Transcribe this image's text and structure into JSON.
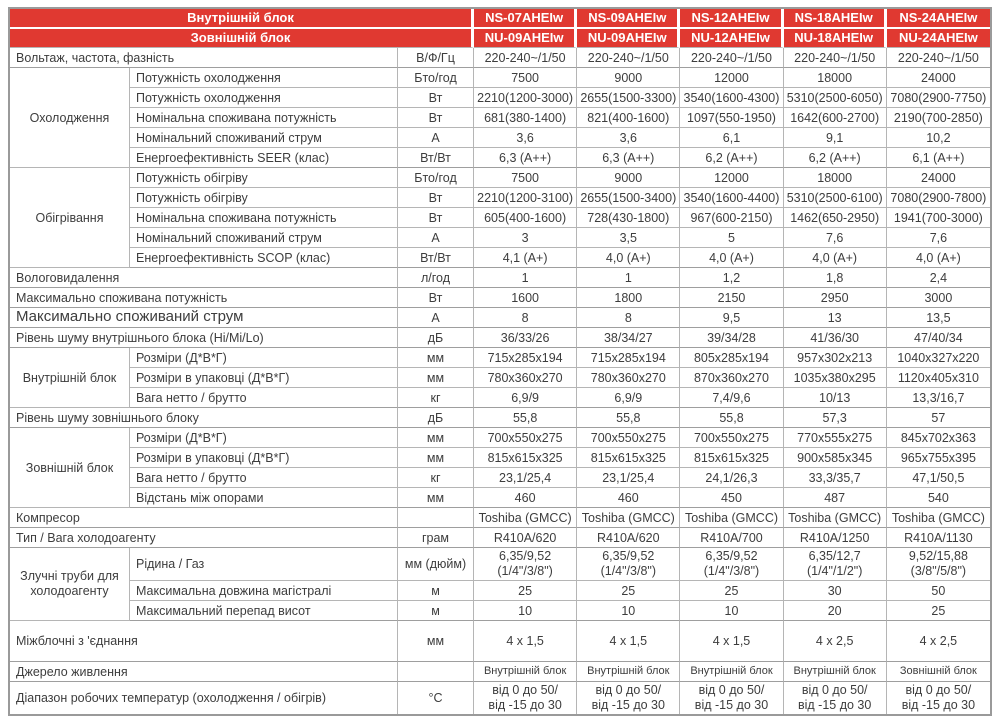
{
  "header": {
    "indoor_label": "Внутрішній блок",
    "outdoor_label": "Зовнішній блок",
    "indoor_models": [
      "NS-07AHEIw",
      "NS-09AHEIw",
      "NS-12AHEIw",
      "NS-18AHEIw",
      "NS-24AHEIw"
    ],
    "outdoor_models": [
      "NU-09AHEIw",
      "NU-09AHEIw",
      "NU-12AHEIw",
      "NU-18AHEIw",
      "NU-24AHEIw"
    ],
    "accent_color": "#e03931"
  },
  "sections": [
    {
      "group": null,
      "rows": [
        {
          "label": "Вольтаж, частота, фазність",
          "unit": "В/Ф/Гц",
          "values": [
            "220-240~/1/50",
            "220-240~/1/50",
            "220-240~/1/50",
            "220-240~/1/50",
            "220-240~/1/50"
          ]
        }
      ]
    },
    {
      "group": "Охолодження",
      "rows": [
        {
          "label": "Потужність охолодження",
          "unit": "Бто/год",
          "values": [
            "7500",
            "9000",
            "12000",
            "18000",
            "24000"
          ]
        },
        {
          "label": "Потужність охолодження",
          "unit": "Вт",
          "values": [
            "2210(1200-3000)",
            "2655(1500-3300)",
            "3540(1600-4300)",
            "5310(2500-6050)",
            "7080(2900-7750)"
          ]
        },
        {
          "label": "Номінальна споживана потужність",
          "unit": "Вт",
          "values": [
            "681(380-1400)",
            "821(400-1600)",
            "1097(550-1950)",
            "1642(600-2700)",
            "2190(700-2850)"
          ]
        },
        {
          "label": "Номінальний споживаний струм",
          "unit": "А",
          "values": [
            "3,6",
            "3,6",
            "6,1",
            "9,1",
            "10,2"
          ]
        },
        {
          "label": "Енергоефективність  SEER (клас)",
          "unit": "Вт/Вт",
          "values": [
            "6,3 (A++)",
            "6,3 (A++)",
            "6,2 (A++)",
            "6,2 (A++)",
            "6,1 (A++)"
          ]
        }
      ]
    },
    {
      "group": "Обігрівання",
      "rows": [
        {
          "label": "Потужність обігріву",
          "unit": "Бто/год",
          "values": [
            "7500",
            "9000",
            "12000",
            "18000",
            "24000"
          ]
        },
        {
          "label": "Потужність обігріву",
          "unit": "Вт",
          "values": [
            "2210(1200-3100)",
            "2655(1500-3400)",
            "3540(1600-4400)",
            "5310(2500-6100)",
            "7080(2900-7800)"
          ]
        },
        {
          "label": "Номінальна споживана потужність",
          "unit": "Вт",
          "values": [
            "605(400-1600)",
            "728(430-1800)",
            "967(600-2150)",
            "1462(650-2950)",
            "1941(700-3000)"
          ]
        },
        {
          "label": "Номінальний споживаний струм",
          "unit": "А",
          "values": [
            "3",
            "3,5",
            "5",
            "7,6",
            "7,6"
          ]
        },
        {
          "label": "Енергоефективність  SCOP (клас)",
          "unit": "Вт/Вт",
          "values": [
            "4,1 (A+)",
            "4,0 (A+)",
            "4,0 (A+)",
            "4,0 (A+)",
            "4,0 (A+)"
          ]
        }
      ]
    },
    {
      "group": null,
      "rows": [
        {
          "label": "Вологовидалення",
          "unit": "л/год",
          "values": [
            "1",
            "1",
            "1,2",
            "1,8",
            "2,4"
          ]
        }
      ]
    },
    {
      "group": null,
      "rows": [
        {
          "label": "Максимально споживана потужність",
          "unit": "Вт",
          "values": [
            "1600",
            "1800",
            "2150",
            "2950",
            "3000"
          ]
        }
      ]
    },
    {
      "group": null,
      "rows": [
        {
          "label": "Максимально споживаний струм",
          "unit": "А",
          "big": true,
          "values": [
            "8",
            "8",
            "9,5",
            "13",
            "13,5"
          ]
        }
      ]
    },
    {
      "group": null,
      "rows": [
        {
          "label": "Рівень шуму внутрішнього блока  (Hi/Mi/Lo)",
          "unit": "дБ",
          "values": [
            "36/33/26",
            "38/34/27",
            "39/34/28",
            "41/36/30",
            "47/40/34"
          ]
        }
      ]
    },
    {
      "group": "Внутрішній блок",
      "rows": [
        {
          "label": "Розміри (Д*В*Г)",
          "unit": "мм",
          "values": [
            "715x285x194",
            "715x285x194",
            "805x285x194",
            "957x302x213",
            "1040x327x220"
          ]
        },
        {
          "label": "Розміри в упаковці  (Д*В*Г)",
          "unit": "мм",
          "values": [
            "780x360x270",
            "780x360x270",
            "870x360x270",
            "1035x380x295",
            "1120x405x310"
          ]
        },
        {
          "label": "Вага нетто  / брутто",
          "unit": "кг",
          "values": [
            "6,9/9",
            "6,9/9",
            "7,4/9,6",
            "10/13",
            "13,3/16,7"
          ]
        }
      ]
    },
    {
      "group": null,
      "rows": [
        {
          "label": "Рівень шуму зовнішнього блоку",
          "unit": "дБ",
          "values": [
            "55,8",
            "55,8",
            "55,8",
            "57,3",
            "57"
          ]
        }
      ]
    },
    {
      "group": "Зовнішній блок",
      "rows": [
        {
          "label": "Розміри (Д*В*Г)",
          "unit": "мм",
          "values": [
            "700x550x275",
            "700x550x275",
            "700x550x275",
            "770x555x275",
            "845x702x363"
          ]
        },
        {
          "label": "Розміри в упаковці  (Д*В*Г)",
          "unit": "мм",
          "values": [
            "815x615x325",
            "815x615x325",
            "815x615x325",
            "900x585x345",
            "965x755x395"
          ]
        },
        {
          "label": "Вага нетто  / брутто",
          "unit": "кг",
          "values": [
            "23,1/25,4",
            "23,1/25,4",
            "24,1/26,3",
            "33,3/35,7",
            "47,1/50,5"
          ]
        },
        {
          "label": "Відстань між опорами",
          "unit": "мм",
          "values": [
            "460",
            "460",
            "450",
            "487",
            "540"
          ]
        }
      ]
    },
    {
      "group": null,
      "rows": [
        {
          "label": "Компресор",
          "unit": "",
          "values": [
            "Toshiba (GMCC)",
            "Toshiba (GMCC)",
            "Toshiba (GMCC)",
            "Toshiba (GMCC)",
            "Toshiba (GMCC)"
          ]
        }
      ]
    },
    {
      "group": null,
      "rows": [
        {
          "label": "Тип / Вага холодоагенту",
          "unit": "грам",
          "values": [
            "R410A/620",
            "R410A/620",
            "R410A/700",
            "R410A/1250",
            "R410A/1130"
          ]
        }
      ]
    },
    {
      "group": "Злучні труби для холодоагенту",
      "rows": [
        {
          "label": "Рідина / Газ",
          "unit": "мм (дюйм)",
          "twoline": true,
          "values": [
            "6,35/9,52\n(1/4\"/3/8\")",
            "6,35/9,52\n(1/4\"/3/8\")",
            "6,35/9,52\n(1/4\"/3/8\")",
            "6,35/12,7\n(1/4\"/1/2\")",
            "9,52/15,88\n(3/8\"/5/8\")"
          ]
        },
        {
          "label": "Максимальна довжина магістралі",
          "unit": "м",
          "values": [
            "25",
            "25",
            "25",
            "30",
            "50"
          ]
        },
        {
          "label": "Максимальний перепад висот",
          "unit": "м",
          "values": [
            "10",
            "10",
            "10",
            "20",
            "25"
          ]
        }
      ]
    },
    {
      "group": null,
      "rows": [
        {
          "label": "Міжблочні з 'єднання",
          "unit": "мм",
          "tall": true,
          "values": [
            "4 x 1,5",
            "4 x 1,5",
            "4 x 1,5",
            "4 x 2,5",
            "4 x 2,5"
          ]
        }
      ]
    },
    {
      "group": null,
      "rows": [
        {
          "label": "Джерело живлення",
          "unit": "",
          "smallvals": true,
          "values": [
            "Внутрішній блок",
            "Внутрішній блок",
            "Внутрішній блок",
            "Внутрішній блок",
            "Зовнішній блок"
          ]
        }
      ]
    },
    {
      "group": null,
      "rows": [
        {
          "label": "Діапазон робочих температур   (охолодження  / обігрів)",
          "unit": "°С",
          "twoline": true,
          "values": [
            "від 0 до 50/\nвід -15 до 30",
            "від 0 до 50/\nвід -15 до 30",
            "від 0 до 50/\nвід -15 до 30",
            "від 0 до 50/\nвід -15 до 30",
            "від 0 до 50/\nвід -15 до 30"
          ]
        }
      ]
    }
  ]
}
